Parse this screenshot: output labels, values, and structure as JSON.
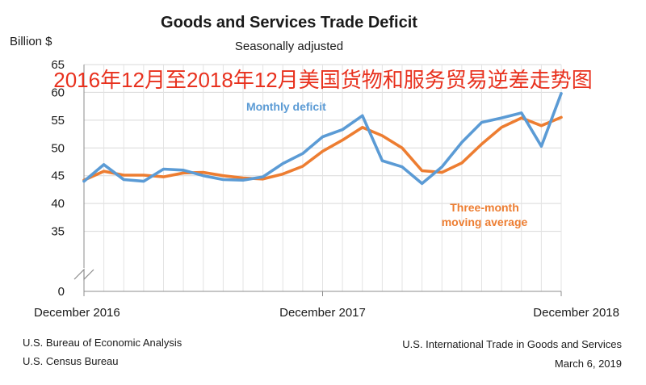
{
  "chart_data": {
    "type": "line",
    "title": "Goods and Services Trade Deficit",
    "subtitle": "Seasonally adjusted",
    "ylabel": "Billion $",
    "overlay_caption": "2016年12月至2018年12月美国货物和服务贸易逆差走势图",
    "ylim": [
      30,
      65
    ],
    "y_ticks": [
      "65",
      "60",
      "55",
      "50",
      "45",
      "40",
      "35",
      "0"
    ],
    "axis_break": true,
    "x_tick_labels": [
      "December 2016",
      "December 2017",
      "December 2018"
    ],
    "x_tick_index": [
      0,
      12,
      24
    ],
    "grid": true,
    "series": [
      {
        "name": "Monthly deficit",
        "color": "#5b9bd5",
        "values": [
          44.0,
          47.0,
          44.3,
          44.0,
          46.2,
          46.0,
          45.0,
          44.3,
          44.2,
          44.8,
          47.2,
          49.0,
          52.0,
          53.3,
          55.8,
          47.7,
          46.6,
          43.6,
          46.6,
          51.0,
          54.6,
          55.4,
          56.3,
          50.3,
          59.8
        ]
      },
      {
        "name": "Three-month moving average",
        "label_lines": [
          "Three-month",
          "moving average"
        ],
        "color": "#ed7d31",
        "values": [
          44.2,
          45.8,
          45.1,
          45.1,
          44.8,
          45.5,
          45.6,
          45.0,
          44.6,
          44.4,
          45.3,
          46.7,
          49.4,
          51.4,
          53.7,
          52.2,
          50.0,
          45.9,
          45.6,
          47.3,
          50.7,
          53.7,
          55.4,
          54.0,
          55.5
        ]
      }
    ]
  },
  "footer": {
    "source_lines": [
      "U.S. Bureau of Economic Analysis",
      "U.S. Census Bureau"
    ],
    "release_title": "U.S. International Trade in Goods and Services",
    "release_date": "March 6, 2019"
  }
}
